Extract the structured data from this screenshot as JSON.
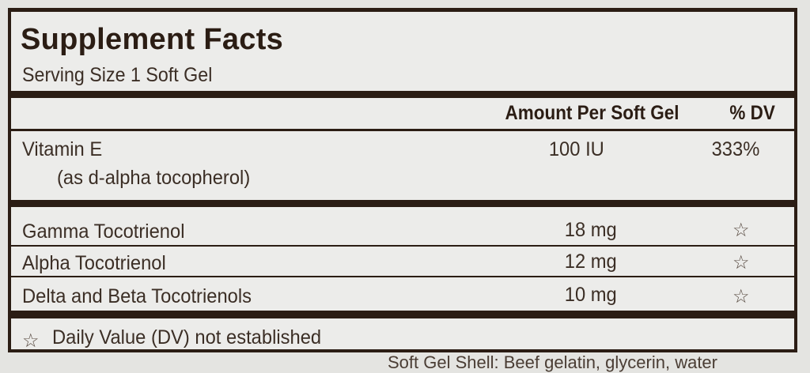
{
  "title": "Supplement Facts",
  "serving_size": "Serving Size 1 Soft Gel",
  "header": {
    "amount": "Amount Per Soft Gel",
    "dv": "% DV"
  },
  "rows": [
    {
      "name": "Vitamin E",
      "sub": "(as d-alpha tocopherol)",
      "amount": "100 IU",
      "dv": "333%"
    },
    {
      "name": "Gamma Tocotrienol",
      "amount": "18 mg",
      "dv": "☆"
    },
    {
      "name": "Alpha Tocotrienol",
      "amount": "12 mg",
      "dv": "☆"
    },
    {
      "name": "Delta and Beta Tocotrienols",
      "amount": "10 mg",
      "dv": "☆"
    }
  ],
  "footnote": {
    "symbol": "☆",
    "text": "Daily Value (DV) not established"
  },
  "below_text": "Soft Gel Shell: Beef gelatin, glycerin, water",
  "colors": {
    "border": "#2b1d14",
    "background": "#ececea",
    "text": "#3b2e25"
  }
}
